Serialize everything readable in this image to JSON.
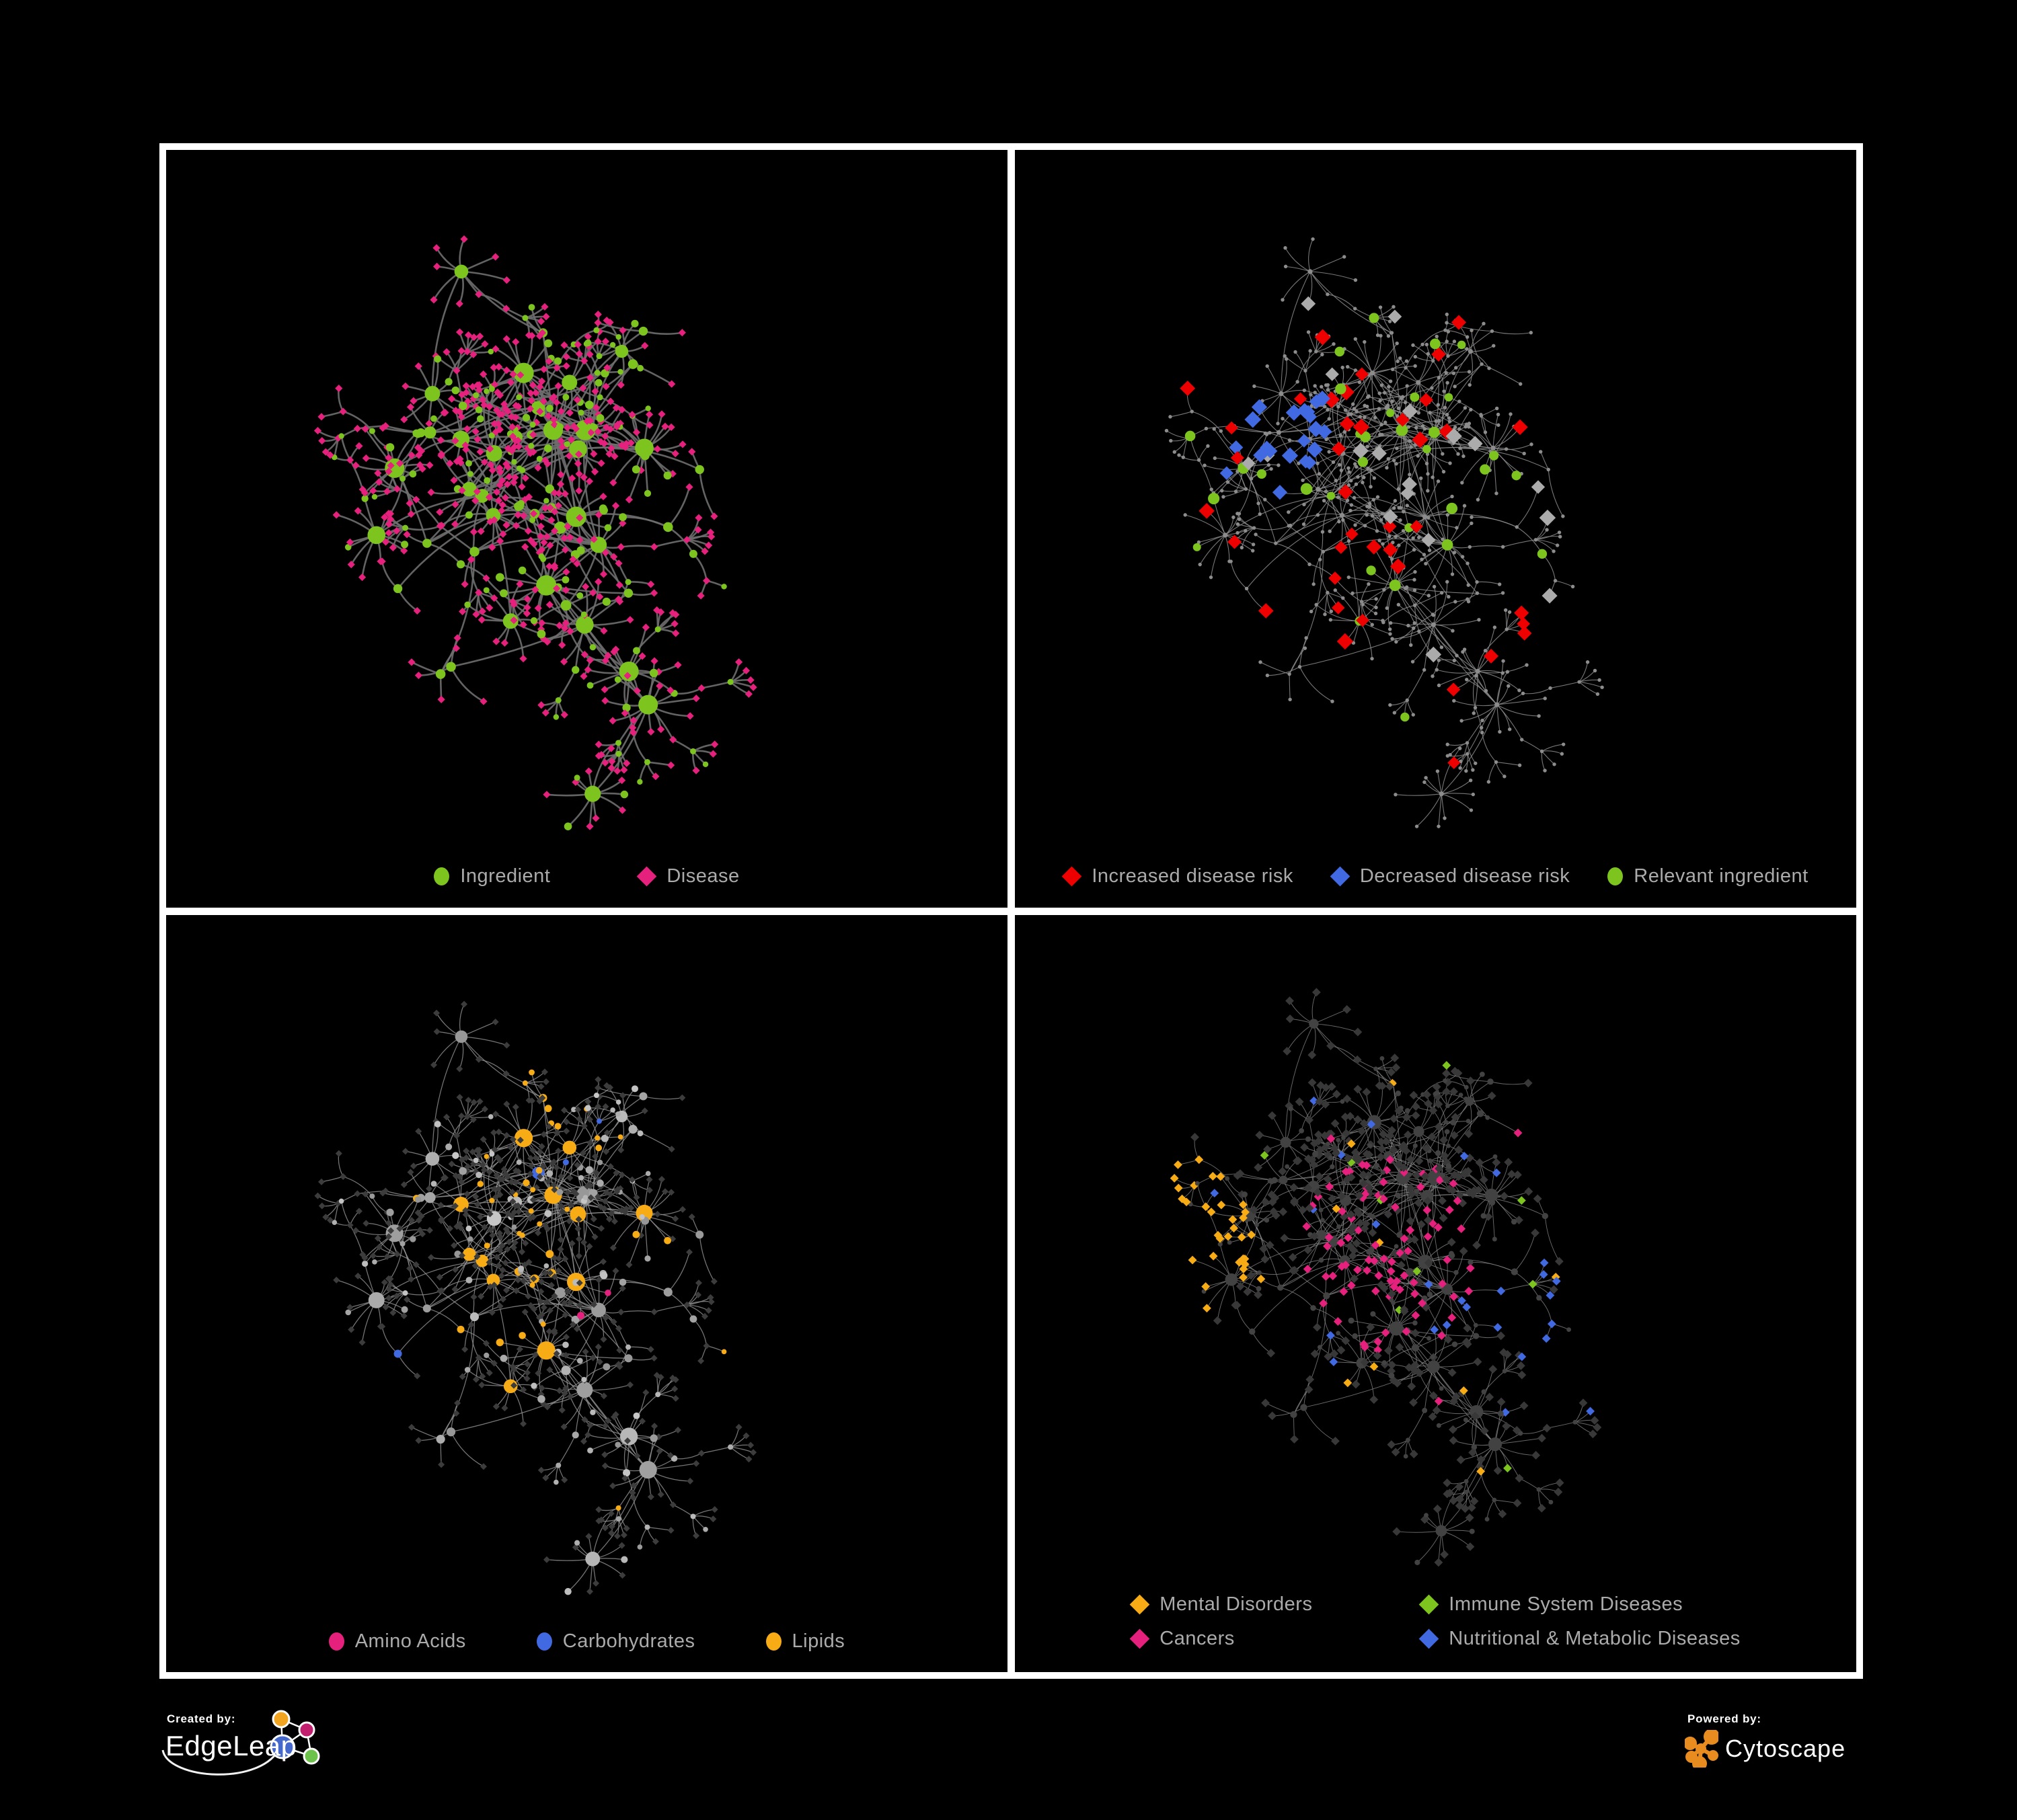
{
  "colors": {
    "green": "#7DC41E",
    "pink": "#E6207D",
    "red": "#EE0000",
    "blue": "#4169E1",
    "orange": "#F7AC15",
    "gray": "#ABABAB",
    "node_gray": "#8C8C8C",
    "node_light_gray": "#A8A8A8",
    "node_dark": "#3C3C3C",
    "legend_text": "#ABABAB",
    "cytoscape_orange": "#E98C1F",
    "edgeleap_orange": "#F0A41F",
    "edgeleap_magenta": "#C21E6E",
    "edgeleap_blue": "#4468CB",
    "edgeleap_green": "#6CC24A"
  },
  "panels": {
    "ingredient_disease": {
      "legend": [
        {
          "shape": "circle",
          "color_key": "green",
          "label": "Ingredient"
        },
        {
          "shape": "diamond",
          "color_key": "pink",
          "label": "Disease"
        }
      ]
    },
    "disease_risk": {
      "legend": [
        {
          "shape": "diamond",
          "color_key": "red",
          "label": "Increased disease risk"
        },
        {
          "shape": "diamond",
          "color_key": "blue",
          "label": "Decreased disease risk"
        },
        {
          "shape": "circle",
          "color_key": "green",
          "label": "Relevant ingredient"
        }
      ]
    },
    "macronutrients": {
      "legend": [
        {
          "shape": "circle",
          "color_key": "pink",
          "label": "Amino Acids"
        },
        {
          "shape": "circle",
          "color_key": "blue",
          "label": "Carbohydrates"
        },
        {
          "shape": "circle",
          "color_key": "orange",
          "label": "Lipids"
        }
      ]
    },
    "disease_categories": {
      "legend": [
        {
          "shape": "diamond",
          "color_key": "orange",
          "label": "Mental Disorders"
        },
        {
          "shape": "diamond",
          "color_key": "green",
          "label": "Immune System Diseases"
        },
        {
          "shape": "diamond",
          "color_key": "pink",
          "label": "Cancers"
        },
        {
          "shape": "diamond",
          "color_key": "blue",
          "label": "Nutritional & Metabolic Diseases"
        }
      ]
    }
  },
  "footer": {
    "created_by": "Created by:",
    "created_brand": "EdgeLeap",
    "powered_by": "Powered by:",
    "powered_brand": "Cytoscape"
  }
}
